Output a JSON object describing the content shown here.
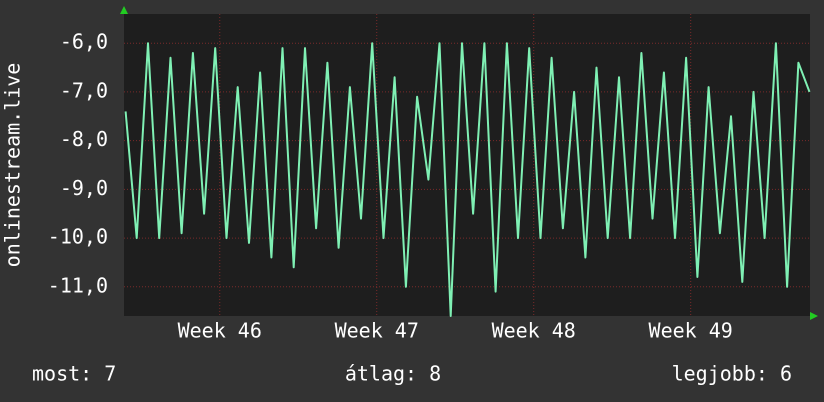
{
  "chart_data": {
    "type": "line",
    "y_label": "onlinestream.live",
    "stats": [
      "most: 7",
      "átlag: 8",
      "legjobb: 6"
    ],
    "grid": true,
    "xlim": [
      45.39,
      49.76
    ],
    "xticks": [
      {
        "value": 46,
        "label": "Week 46"
      },
      {
        "value": 47,
        "label": "Week 47"
      },
      {
        "value": 48,
        "label": "Week 48"
      },
      {
        "value": 49,
        "label": "Week 49"
      }
    ],
    "ylim": [
      -11.6,
      -5.4
    ],
    "yticks": [
      {
        "value": -6,
        "label": "-6,0"
      },
      {
        "value": -7,
        "label": "-7,0"
      },
      {
        "value": -8,
        "label": "-8,0"
      },
      {
        "value": -9,
        "label": "-9,0"
      },
      {
        "value": -10,
        "label": "-10,0"
      },
      {
        "value": -11,
        "label": "-11,0"
      }
    ],
    "x": [
      45.4,
      45.471,
      45.543,
      45.614,
      45.686,
      45.757,
      45.829,
      45.9,
      45.971,
      46.043,
      46.114,
      46.186,
      46.257,
      46.329,
      46.4,
      46.471,
      46.543,
      46.614,
      46.686,
      46.757,
      46.829,
      46.9,
      46.971,
      47.043,
      47.114,
      47.186,
      47.257,
      47.329,
      47.4,
      47.471,
      47.543,
      47.614,
      47.686,
      47.757,
      47.829,
      47.9,
      47.971,
      48.043,
      48.114,
      48.186,
      48.257,
      48.329,
      48.4,
      48.471,
      48.543,
      48.614,
      48.686,
      48.757,
      48.829,
      48.9,
      48.971,
      49.043,
      49.114,
      49.186,
      49.257,
      49.329,
      49.4,
      49.471,
      49.543,
      49.614,
      49.686,
      49.757
    ],
    "series": [
      {
        "color": "#7ff0b4",
        "values": [
          -7.4,
          -10,
          -6,
          -10,
          -6.3,
          -9.9,
          -6.2,
          -9.5,
          -6.1,
          -10,
          -6.9,
          -10.1,
          -6.6,
          -10.4,
          -6.1,
          -10.6,
          -6.1,
          -9.8,
          -6.4,
          -10.2,
          -6.9,
          -9.6,
          -6,
          -10,
          -6.7,
          -11,
          -7.1,
          -8.8,
          -6,
          -11.6,
          -6,
          -9.5,
          -6,
          -11.1,
          -6,
          -10,
          -6.1,
          -10,
          -6.3,
          -9.8,
          -7,
          -10.4,
          -6.5,
          -10,
          -6.7,
          -10,
          -6.2,
          -9.6,
          -6.6,
          -10,
          -6.3,
          -10.8,
          -6.9,
          -9.9,
          -7.5,
          -10.9,
          -7,
          -10,
          -6,
          -11,
          -6.4,
          -7
        ]
      }
    ]
  }
}
